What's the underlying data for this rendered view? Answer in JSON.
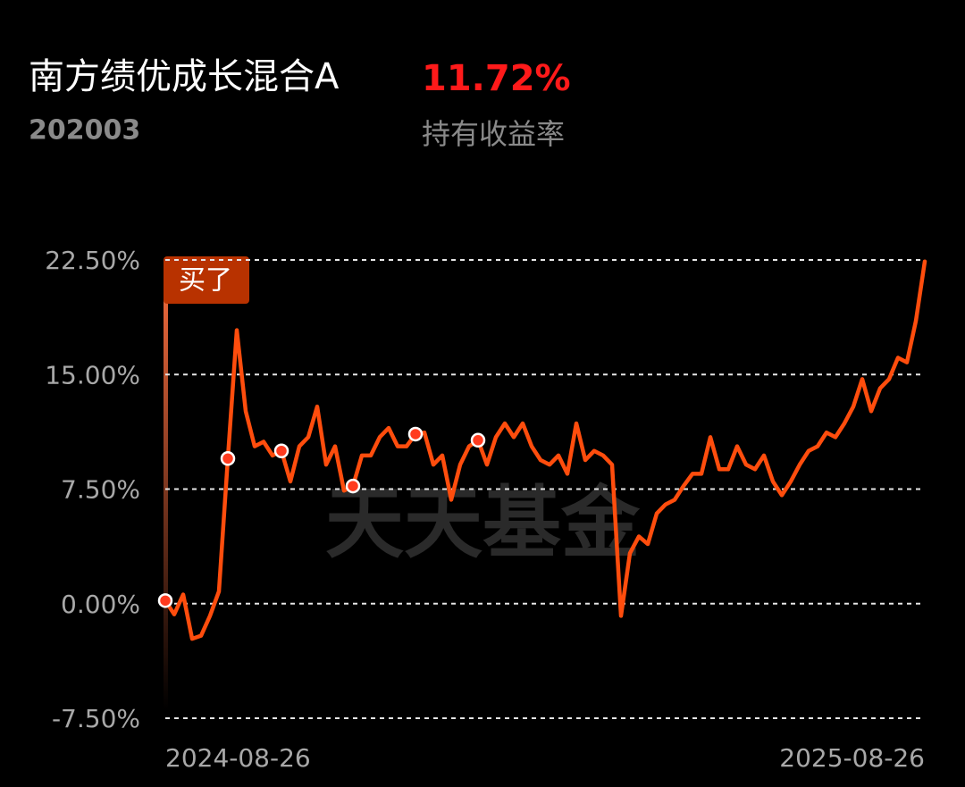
{
  "header": {
    "title": "南方绩优成长混合A",
    "return_value": "11.72%",
    "return_label": "持有收益率",
    "code": "202003"
  },
  "chart_data": {
    "type": "line",
    "annotation": "买了",
    "watermark": "天天基金",
    "categories": [
      "2024-08-26",
      null,
      null,
      null,
      null,
      null,
      null,
      null,
      null,
      null,
      null,
      null,
      null,
      null,
      null,
      null,
      null,
      null,
      null,
      null,
      null,
      null,
      null,
      null,
      null,
      null,
      null,
      null,
      null,
      null,
      null,
      null,
      null,
      null,
      null,
      null,
      null,
      null,
      null,
      null,
      null,
      null,
      null,
      null,
      null,
      null,
      null,
      null,
      null,
      null,
      null,
      null,
      null,
      null,
      null,
      null,
      null,
      null,
      null,
      null,
      null,
      null,
      null,
      null,
      null,
      null,
      null,
      null,
      null,
      null,
      null,
      null,
      null,
      null,
      null,
      null,
      null,
      null,
      null,
      null,
      null,
      null,
      null,
      null,
      null,
      "2025-08-26"
    ],
    "series": [
      {
        "color": "#ff4d0d",
        "values": [
          0.2,
          -0.7,
          0.6,
          -2.3,
          -2.1,
          -0.8,
          0.8,
          9.5,
          17.9,
          12.6,
          10.3,
          10.6,
          9.7,
          10.0,
          8.0,
          10.3,
          10.9,
          12.9,
          9.1,
          10.3,
          7.4,
          7.7,
          9.7,
          9.7,
          10.9,
          11.5,
          10.3,
          10.3,
          11.1,
          11.2,
          9.1,
          9.7,
          6.8,
          9.1,
          10.3,
          10.7,
          9.1,
          10.9,
          11.8,
          10.9,
          11.8,
          10.3,
          9.4,
          9.1,
          9.7,
          8.5,
          11.8,
          9.4,
          10.0,
          9.7,
          9.1,
          -0.8,
          3.3,
          4.4,
          3.9,
          5.9,
          6.5,
          6.8,
          7.7,
          8.5,
          8.5,
          10.9,
          8.8,
          8.8,
          10.3,
          9.1,
          8.8,
          9.7,
          8.0,
          7.1,
          8.0,
          9.1,
          10.0,
          10.3,
          11.2,
          10.9,
          11.8,
          12.9,
          14.7,
          12.6,
          14.1,
          14.7,
          16.1,
          15.8,
          18.5,
          22.4
        ]
      }
    ],
    "markers": [
      0,
      7,
      13,
      21,
      28,
      35
    ],
    "marker_color": "#ff3b1f",
    "ylim": [
      -7.5,
      22.5
    ],
    "yticks": [
      {
        "value": -7.5,
        "label": "-7.50%"
      },
      {
        "value": 0,
        "label": "0.00%"
      },
      {
        "value": 7.5,
        "label": "7.50%"
      },
      {
        "value": 15,
        "label": "15.00%"
      },
      {
        "value": 22.5,
        "label": "22.50%"
      }
    ],
    "grid": true
  }
}
